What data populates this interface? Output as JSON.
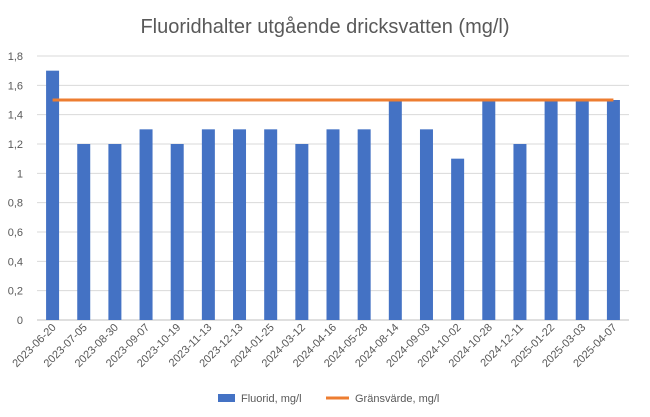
{
  "chart_data": {
    "type": "bar",
    "title": "Fluoridhalter utgående dricksvatten (mg/l)",
    "xlabel": "",
    "ylabel": "",
    "ylim": [
      0,
      1.8
    ],
    "yticks": [
      "0",
      "0,2",
      "0,4",
      "0,6",
      "0,8",
      "1",
      "1,2",
      "1,4",
      "1,6",
      "1,8"
    ],
    "ytick_values": [
      0,
      0.2,
      0.4,
      0.6,
      0.8,
      1.0,
      1.2,
      1.4,
      1.6,
      1.8
    ],
    "grid": true,
    "legend_position": "bottom",
    "categories": [
      "2023-06-20",
      "2023-07-05",
      "2023-08-30",
      "2023-09-07",
      "2023-10-19",
      "2023-11-13",
      "2023-12-13",
      "2024-01-25",
      "2024-03-12",
      "2024-04-16",
      "2024-05-28",
      "2024-08-14",
      "2024-09-03",
      "2024-10-02",
      "2024-10-28",
      "2024-12-11",
      "2025-01-22",
      "2025-03-03",
      "2025-04-07"
    ],
    "series": [
      {
        "name": "Fluorid, mg/l",
        "type": "bar",
        "color": "#4472C4",
        "values": [
          1.7,
          1.2,
          1.2,
          1.3,
          1.2,
          1.3,
          1.3,
          1.3,
          1.2,
          1.3,
          1.3,
          1.5,
          1.3,
          1.1,
          1.5,
          1.2,
          1.5,
          1.5,
          1.5
        ]
      },
      {
        "name": "Gränsvärde, mg/l",
        "type": "line",
        "color": "#ED7D31",
        "values": [
          1.5,
          1.5,
          1.5,
          1.5,
          1.5,
          1.5,
          1.5,
          1.5,
          1.5,
          1.5,
          1.5,
          1.5,
          1.5,
          1.5,
          1.5,
          1.5,
          1.5,
          1.5,
          1.5
        ]
      }
    ]
  }
}
